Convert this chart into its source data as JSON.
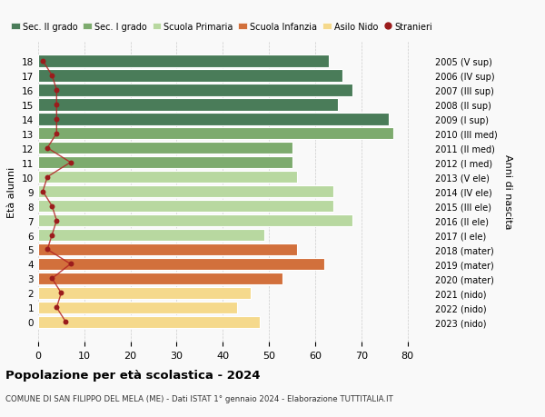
{
  "ages": [
    18,
    17,
    16,
    15,
    14,
    13,
    12,
    11,
    10,
    9,
    8,
    7,
    6,
    5,
    4,
    3,
    2,
    1,
    0
  ],
  "years": [
    "2005 (V sup)",
    "2006 (IV sup)",
    "2007 (III sup)",
    "2008 (II sup)",
    "2009 (I sup)",
    "2010 (III med)",
    "2011 (II med)",
    "2012 (I med)",
    "2013 (V ele)",
    "2014 (IV ele)",
    "2015 (III ele)",
    "2016 (II ele)",
    "2017 (I ele)",
    "2018 (mater)",
    "2019 (mater)",
    "2020 (mater)",
    "2021 (nido)",
    "2022 (nido)",
    "2023 (nido)"
  ],
  "bar_values": [
    63,
    66,
    68,
    65,
    76,
    77,
    55,
    55,
    56,
    64,
    64,
    68,
    49,
    56,
    62,
    53,
    46,
    43,
    48
  ],
  "stranieri": [
    1,
    3,
    4,
    4,
    4,
    4,
    2,
    7,
    2,
    1,
    3,
    4,
    3,
    2,
    7,
    3,
    5,
    4,
    6
  ],
  "colors": {
    "sec2": "#4a7c59",
    "sec1": "#7dab6e",
    "primaria": "#b8d8a0",
    "infanzia": "#d2703c",
    "nido": "#f5d98c",
    "stranieri_color": "#9b1c1c",
    "stranieri_line": "#b22222"
  },
  "school_ranges": {
    "sec2": [
      14,
      18
    ],
    "sec1": [
      11,
      13
    ],
    "primaria": [
      6,
      10
    ],
    "infanzia": [
      3,
      5
    ],
    "nido": [
      0,
      2
    ]
  },
  "xlim": [
    0,
    85
  ],
  "xticks": [
    0,
    10,
    20,
    30,
    40,
    50,
    60,
    70,
    80
  ],
  "ylabel": "Età alunni",
  "ylabel2": "Anni di nascita",
  "title": "Popolazione per età scolastica - 2024",
  "subtitle": "COMUNE DI SAN FILIPPO DEL MELA (ME) - Dati ISTAT 1° gennaio 2024 - Elaborazione TUTTITALIA.IT",
  "legend_labels": [
    "Sec. II grado",
    "Sec. I grado",
    "Scuola Primaria",
    "Scuola Infanzia",
    "Asilo Nido",
    "Stranieri"
  ],
  "legend_colors": [
    "#4a7c59",
    "#7dab6e",
    "#b8d8a0",
    "#d2703c",
    "#f5d98c",
    "#9b1c1c"
  ],
  "bg_color": "#f9f9f9"
}
